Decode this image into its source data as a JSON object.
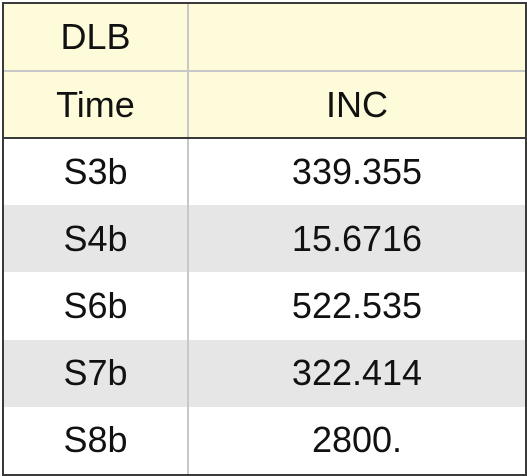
{
  "table": {
    "header_row_1": [
      "DLB",
      ""
    ],
    "header_row_2": [
      "Time",
      "INC"
    ],
    "rows": [
      [
        "S3b",
        "339.355"
      ],
      [
        "S4b",
        "15.6716"
      ],
      [
        "S6b",
        "522.535"
      ],
      [
        "S7b",
        "322.414"
      ],
      [
        "S8b",
        "2800."
      ]
    ]
  },
  "colors": {
    "header_bg": "#fdfbd9",
    "alt_row_bg": "#e6e6e6",
    "border": "#3a3a3a",
    "inner_border": "#c8c8c8"
  }
}
